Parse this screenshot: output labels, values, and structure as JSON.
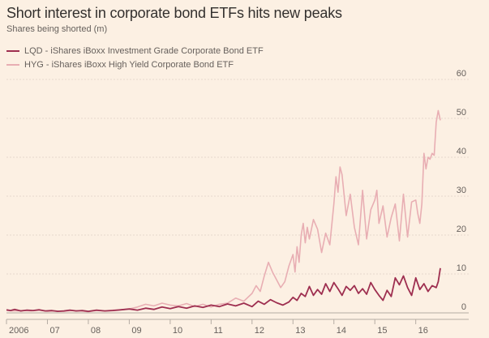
{
  "chart_data": {
    "type": "line",
    "title": "Short interest in corporate bond ETFs hits new peaks",
    "subtitle": "Shares being shorted (m)",
    "xlabel": "",
    "ylabel": "Shares being shorted (m)",
    "ylim": [
      0,
      60
    ],
    "xlim": [
      2006.0,
      2016.7
    ],
    "yticks": [
      "0",
      "10",
      "20",
      "30",
      "40",
      "50",
      "60"
    ],
    "xticks": [
      {
        "x": 2006,
        "label": "2006"
      },
      {
        "x": 2007,
        "label": "07"
      },
      {
        "x": 2008,
        "label": "08"
      },
      {
        "x": 2009,
        "label": "09"
      },
      {
        "x": 2010,
        "label": "10"
      },
      {
        "x": 2011,
        "label": "11"
      },
      {
        "x": 2012,
        "label": "12"
      },
      {
        "x": 2013,
        "label": "13"
      },
      {
        "x": 2014,
        "label": "14"
      },
      {
        "x": 2015,
        "label": "15"
      },
      {
        "x": 2016,
        "label": "16"
      }
    ],
    "grid": true,
    "legend_position": "top-left",
    "series": [
      {
        "name": "LQD - iShares iBoxx Investment Grade Corporate Bond ETF",
        "color": "#9e2f50",
        "x": [
          2006.0,
          2006.1,
          2006.2,
          2006.35,
          2006.5,
          2006.65,
          2006.8,
          2006.95,
          2007.1,
          2007.25,
          2007.4,
          2007.55,
          2007.7,
          2007.85,
          2008.0,
          2008.2,
          2008.4,
          2008.6,
          2008.8,
          2009.0,
          2009.2,
          2009.4,
          2009.6,
          2009.8,
          2010.0,
          2010.2,
          2010.4,
          2010.6,
          2010.8,
          2011.0,
          2011.2,
          2011.4,
          2011.6,
          2011.8,
          2012.0,
          2012.15,
          2012.3,
          2012.45,
          2012.6,
          2012.75,
          2012.9,
          2013.0,
          2013.1,
          2013.2,
          2013.3,
          2013.4,
          2013.5,
          2013.6,
          2013.7,
          2013.8,
          2013.9,
          2014.0,
          2014.1,
          2014.2,
          2014.3,
          2014.4,
          2014.5,
          2014.6,
          2014.7,
          2014.8,
          2014.9,
          2015.0,
          2015.1,
          2015.2,
          2015.3,
          2015.4,
          2015.5,
          2015.6,
          2015.7,
          2015.8,
          2015.9,
          2016.0,
          2016.1,
          2016.2,
          2016.3,
          2016.4,
          2016.5,
          2016.55,
          2016.6
        ],
        "values": [
          0.8,
          0.6,
          0.9,
          0.5,
          0.7,
          0.6,
          0.8,
          0.5,
          0.6,
          0.4,
          0.5,
          0.7,
          0.5,
          0.6,
          0.4,
          0.7,
          0.5,
          0.6,
          0.8,
          1.0,
          0.7,
          1.2,
          0.9,
          1.5,
          1.1,
          1.6,
          1.2,
          1.8,
          1.4,
          2.0,
          1.6,
          2.3,
          1.8,
          2.5,
          1.6,
          3.0,
          2.2,
          3.4,
          2.6,
          2.0,
          2.8,
          4.0,
          3.2,
          5.0,
          4.2,
          6.8,
          4.5,
          6.0,
          4.8,
          7.5,
          5.5,
          7.8,
          6.2,
          4.5,
          6.8,
          5.8,
          7.0,
          5.0,
          6.2,
          4.8,
          7.8,
          6.0,
          4.5,
          3.2,
          5.8,
          4.2,
          9.0,
          7.2,
          9.5,
          6.5,
          4.5,
          9.0,
          6.0,
          7.5,
          5.5,
          7.0,
          6.5,
          8.0,
          11.5
        ]
      },
      {
        "name": "HYG - iShares iBoxx High Yield Corporate Bond ETF",
        "color": "#e8aeb3",
        "x": [
          2006.0,
          2006.2,
          2006.4,
          2006.6,
          2006.8,
          2007.0,
          2007.2,
          2007.4,
          2007.6,
          2007.8,
          2008.0,
          2008.2,
          2008.4,
          2008.6,
          2008.8,
          2009.0,
          2009.2,
          2009.4,
          2009.6,
          2009.8,
          2010.0,
          2010.2,
          2010.4,
          2010.6,
          2010.8,
          2011.0,
          2011.2,
          2011.4,
          2011.6,
          2011.8,
          2012.0,
          2012.1,
          2012.2,
          2012.3,
          2012.4,
          2012.5,
          2012.6,
          2012.7,
          2012.8,
          2012.9,
          2013.0,
          2013.05,
          2013.1,
          2013.15,
          2013.2,
          2013.25,
          2013.3,
          2013.35,
          2013.4,
          2013.5,
          2013.6,
          2013.7,
          2013.8,
          2013.9,
          2014.0,
          2014.05,
          2014.1,
          2014.15,
          2014.2,
          2014.3,
          2014.4,
          2014.5,
          2014.6,
          2014.7,
          2014.8,
          2014.9,
          2015.0,
          2015.05,
          2015.1,
          2015.2,
          2015.3,
          2015.4,
          2015.5,
          2015.6,
          2015.7,
          2015.8,
          2015.9,
          2016.0,
          2016.05,
          2016.1,
          2016.15,
          2016.2,
          2016.25,
          2016.3,
          2016.35,
          2016.4,
          2016.45,
          2016.5,
          2016.55,
          2016.6
        ],
        "values": [
          0.6,
          0.5,
          0.6,
          0.5,
          0.7,
          0.4,
          0.5,
          0.4,
          0.6,
          0.5,
          0.3,
          0.6,
          0.5,
          0.7,
          0.8,
          1.0,
          1.5,
          2.2,
          1.8,
          2.5,
          2.0,
          1.8,
          2.4,
          1.6,
          2.2,
          1.5,
          2.2,
          2.5,
          3.8,
          3.0,
          5.0,
          7.0,
          5.5,
          9.5,
          13.0,
          10.5,
          8.5,
          6.5,
          8.0,
          12.0,
          15.0,
          10.5,
          17.0,
          13.0,
          20.0,
          23.0,
          18.0,
          22.0,
          19.0,
          24.0,
          21.5,
          15.5,
          20.5,
          17.5,
          28.0,
          35.0,
          31.0,
          37.5,
          35.5,
          25.0,
          30.5,
          22.0,
          17.5,
          31.5,
          19.0,
          26.5,
          29.0,
          31.5,
          23.0,
          27.5,
          19.5,
          24.5,
          28.0,
          18.5,
          30.5,
          19.5,
          28.5,
          29.0,
          25.5,
          23.0,
          28.0,
          41.0,
          37.0,
          40.0,
          39.5,
          41.0,
          40.5,
          49.0,
          52.0,
          49.5
        ]
      }
    ]
  }
}
